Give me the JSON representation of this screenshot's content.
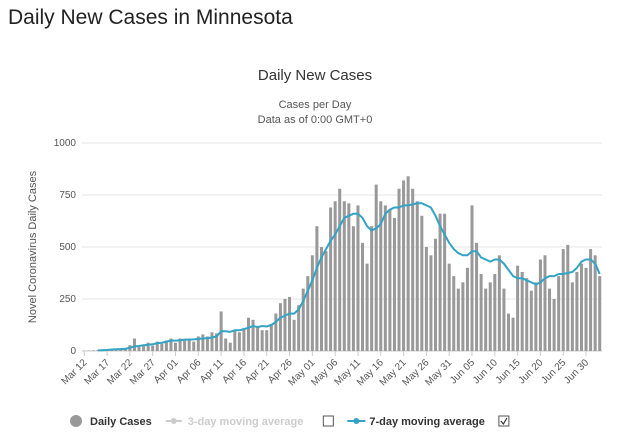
{
  "page_title": "Daily New Cases in Minnesota",
  "chart_data": {
    "type": "bar",
    "title": "Daily New Cases",
    "subtitle": "Cases per Day",
    "note": "Data as of 0:00 GMT+0",
    "y_label": "Novel Coronavirus Daily Cases",
    "categories": [
      "Mar 12",
      null,
      null,
      null,
      null,
      "Mar 17",
      null,
      null,
      null,
      null,
      "Mar 22",
      null,
      null,
      null,
      null,
      "Mar 27",
      null,
      null,
      null,
      null,
      "Apr 01",
      null,
      null,
      null,
      null,
      "Apr 06",
      null,
      null,
      null,
      null,
      "Apr 11",
      null,
      null,
      null,
      null,
      "Apr 16",
      null,
      null,
      null,
      null,
      "Apr 21",
      null,
      null,
      null,
      null,
      "Apr 26",
      null,
      null,
      null,
      null,
      "May 01",
      null,
      null,
      null,
      null,
      "May 06",
      null,
      null,
      null,
      null,
      "May 11",
      null,
      null,
      null,
      null,
      "May 16",
      null,
      null,
      null,
      null,
      "May 21",
      null,
      null,
      null,
      null,
      "May 26",
      null,
      null,
      null,
      null,
      "May 31",
      null,
      null,
      null,
      null,
      "Jun 05",
      null,
      null,
      null,
      null,
      "Jun 10",
      null,
      null,
      null,
      null,
      "Jun 15",
      null,
      null,
      null,
      null,
      "Jun 20",
      null,
      null,
      null,
      null,
      "Jun 25",
      null,
      null,
      null,
      null,
      "Jun 30",
      null,
      null,
      null
    ],
    "series": [
      {
        "name": "Daily Cases",
        "type": "bar",
        "color": "#999999",
        "values": [
          1,
          2,
          3,
          5,
          8,
          6,
          10,
          12,
          8,
          15,
          28,
          60,
          20,
          30,
          40,
          26,
          45,
          35,
          50,
          60,
          40,
          60,
          50,
          60,
          45,
          70,
          80,
          70,
          90,
          85,
          190,
          60,
          40,
          100,
          90,
          110,
          160,
          150,
          120,
          100,
          100,
          130,
          180,
          230,
          250,
          260,
          150,
          220,
          300,
          360,
          460,
          600,
          500,
          480,
          690,
          720,
          780,
          720,
          710,
          600,
          700,
          520,
          420,
          600,
          800,
          720,
          700,
          680,
          640,
          780,
          820,
          840,
          780,
          720,
          650,
          500,
          460,
          540,
          660,
          660,
          420,
          360,
          300,
          330,
          400,
          700,
          520,
          370,
          300,
          330,
          370,
          460,
          300,
          180,
          160,
          410,
          380,
          350,
          290,
          330,
          440,
          460,
          300,
          250,
          360,
          490,
          510,
          330,
          380,
          420,
          400,
          490,
          460,
          360
        ]
      },
      {
        "name": "7-day moving average",
        "type": "line",
        "color": "#33a3c6",
        "values": [
          null,
          null,
          null,
          3,
          4,
          5,
          7,
          8,
          9,
          10,
          16,
          22,
          24,
          28,
          30,
          32,
          38,
          40,
          45,
          50,
          50,
          52,
          55,
          55,
          56,
          58,
          60,
          62,
          65,
          70,
          95,
          95,
          92,
          100,
          100,
          105,
          112,
          120,
          115,
          120,
          118,
          125,
          140,
          160,
          170,
          180,
          180,
          200,
          240,
          290,
          340,
          400,
          450,
          490,
          530,
          560,
          600,
          640,
          650,
          660,
          660,
          640,
          600,
          580,
          590,
          610,
          660,
          680,
          690,
          690,
          700,
          700,
          705,
          710,
          710,
          700,
          690,
          650,
          600,
          560,
          520,
          490,
          470,
          460,
          460,
          480,
          480,
          450,
          440,
          430,
          440,
          440,
          420,
          390,
          360,
          350,
          350,
          340,
          330,
          320,
          330,
          350,
          360,
          360,
          370,
          370,
          375,
          380,
          400,
          430,
          440,
          440,
          420,
          370
        ]
      }
    ],
    "hidden_legend": [
      {
        "name": "3-day moving average",
        "color": "#cccccc"
      }
    ],
    "ylim": [
      0,
      1000
    ],
    "yticks": [
      0,
      250,
      500,
      750,
      1000
    ],
    "grid": true
  }
}
